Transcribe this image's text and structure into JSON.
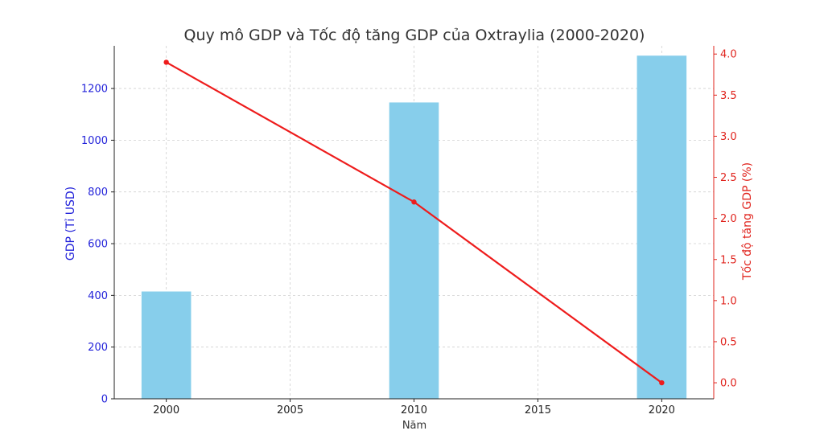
{
  "chart_data": {
    "type": "bar+line",
    "title": "Quy mô GDP và Tốc độ tăng GDP của Oxtraylia (2000-2020)",
    "xlabel": "Năm",
    "ylabel_left": "GDP (Tỉ USD)",
    "ylabel_right": "Tốc độ tăng GDP (%)",
    "x_ticks": [
      "2000",
      "2005",
      "2010",
      "2015",
      "2020"
    ],
    "xlim": [
      1997.9,
      2022.1
    ],
    "ylim_left": [
      0,
      1365
    ],
    "ylim_right": [
      -0.195,
      4.1
    ],
    "y_left_ticks": [
      "0",
      "200",
      "400",
      "600",
      "800",
      "1000",
      "1200"
    ],
    "y_right_ticks": [
      "0.0",
      "0.5",
      "1.0",
      "1.5",
      "2.0",
      "2.5",
      "3.0",
      "3.5",
      "4.0"
    ],
    "grid": true,
    "series": [
      {
        "name": "GDP (Tỉ USD)",
        "type": "bar",
        "axis": "left",
        "color": "#87ceeb",
        "x": [
          2000,
          2010,
          2020
        ],
        "values": [
          415,
          1146,
          1327
        ]
      },
      {
        "name": "Tốc độ tăng GDP (%)",
        "type": "line",
        "axis": "right",
        "color": "#ee1c1c",
        "x": [
          2000,
          2010,
          2020
        ],
        "values": [
          3.9,
          2.2,
          0.0
        ]
      }
    ]
  }
}
